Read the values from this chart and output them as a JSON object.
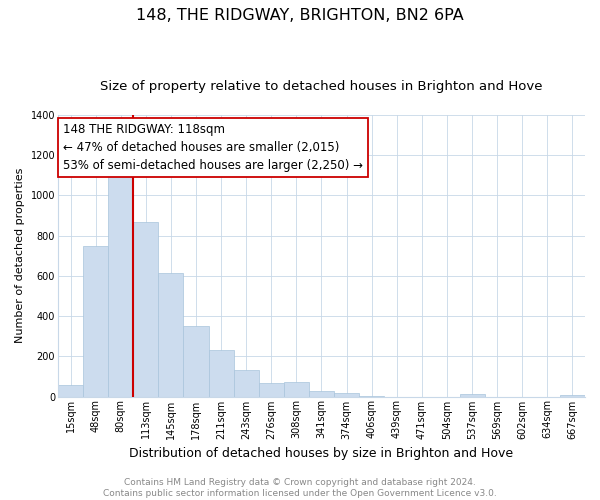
{
  "title": "148, THE RIDGWAY, BRIGHTON, BN2 6PA",
  "subtitle": "Size of property relative to detached houses in Brighton and Hove",
  "xlabel": "Distribution of detached houses by size in Brighton and Hove",
  "ylabel": "Number of detached properties",
  "footer_line1": "Contains HM Land Registry data © Crown copyright and database right 2024.",
  "footer_line2": "Contains public sector information licensed under the Open Government Licence v3.0.",
  "bar_labels": [
    "15sqm",
    "48sqm",
    "80sqm",
    "113sqm",
    "145sqm",
    "178sqm",
    "211sqm",
    "243sqm",
    "276sqm",
    "308sqm",
    "341sqm",
    "374sqm",
    "406sqm",
    "439sqm",
    "471sqm",
    "504sqm",
    "537sqm",
    "569sqm",
    "602sqm",
    "634sqm",
    "667sqm"
  ],
  "bar_values": [
    55,
    750,
    1095,
    870,
    615,
    350,
    230,
    130,
    65,
    70,
    25,
    18,
    5,
    0,
    0,
    0,
    12,
    0,
    0,
    0,
    10
  ],
  "bar_color": "#ccdcee",
  "bar_edge_color": "#a8c4dc",
  "vline_color": "#cc0000",
  "annotation_line1": "148 THE RIDGWAY: 118sqm",
  "annotation_line2": "← 47% of detached houses are smaller (2,015)",
  "annotation_line3": "53% of semi-detached houses are larger (2,250) →",
  "annotation_box_color": "#ffffff",
  "annotation_box_edge": "#cc0000",
  "ylim": [
    0,
    1400
  ],
  "yticks": [
    0,
    200,
    400,
    600,
    800,
    1000,
    1200,
    1400
  ],
  "background_color": "#ffffff",
  "grid_color": "#c8d8e8",
  "title_fontsize": 11.5,
  "subtitle_fontsize": 9.5,
  "xlabel_fontsize": 9,
  "ylabel_fontsize": 8,
  "tick_fontsize": 7,
  "annotation_fontsize": 8.5,
  "footer_fontsize": 6.5
}
